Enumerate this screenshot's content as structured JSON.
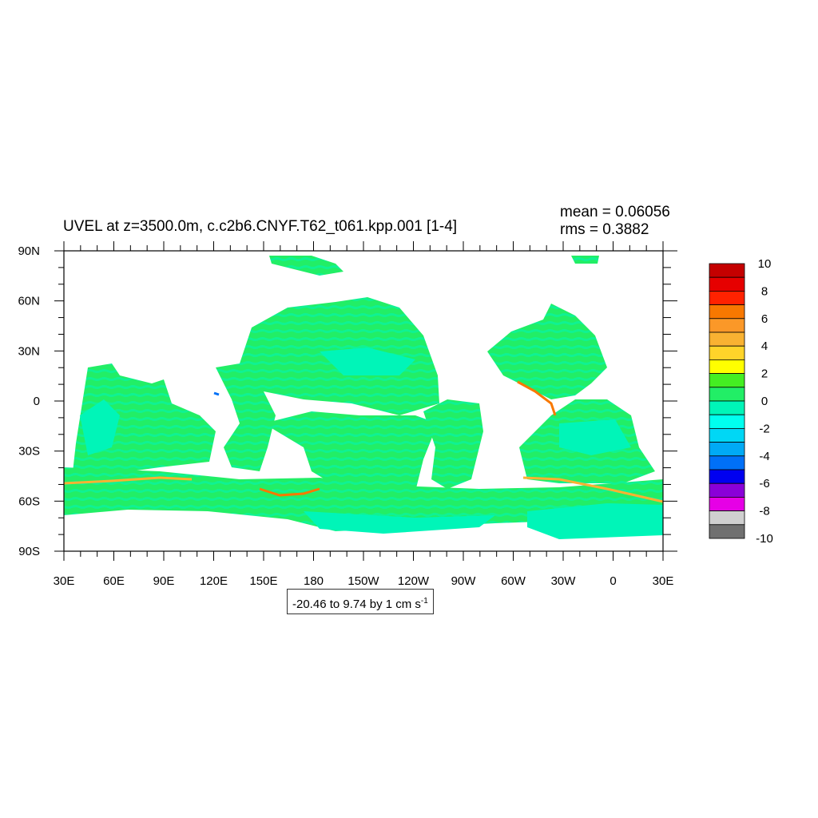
{
  "chart_data": {
    "type": "heatmap",
    "title": "UVEL at z=3500.0m, c.c2b6.CNYF.T62_t061.kpp.001 [1-4]",
    "stats": {
      "mean_label": "mean = 0.06056",
      "rms_label": "rms = 0.3882"
    },
    "contour_info": {
      "text": "-20.46 to 9.74 by 1 cm s",
      "unit_exponent": "-1"
    },
    "x_ticks": [
      "30E",
      "60E",
      "90E",
      "120E",
      "150E",
      "180",
      "150W",
      "120W",
      "90W",
      "60W",
      "30W",
      "0",
      "30E"
    ],
    "y_ticks": [
      "90N",
      "60N",
      "30N",
      "0",
      "30S",
      "60S",
      "90S"
    ],
    "colorbar": {
      "labels": [
        "10",
        "8",
        "6",
        "4",
        "2",
        "0",
        "-2",
        "-4",
        "-6",
        "-8",
        "-10"
      ],
      "colors": [
        "#c40000",
        "#e60000",
        "#ff2200",
        "#f87800",
        "#fb9828",
        "#f9b232",
        "#ffd42a",
        "#ffff00",
        "#44ee22",
        "#22ee66",
        "#00f5b8",
        "#00ffef",
        "#00d7f5",
        "#00aaf5",
        "#0070f7",
        "#0000f0",
        "#8a00d8",
        "#e600e6",
        "#d0d0d0",
        "#707070"
      ]
    },
    "land_color": "#ffffff",
    "dominant_colors": {
      "near_zero_negative": "#00f5b8",
      "near_zero_positive": "#22ee66"
    }
  }
}
